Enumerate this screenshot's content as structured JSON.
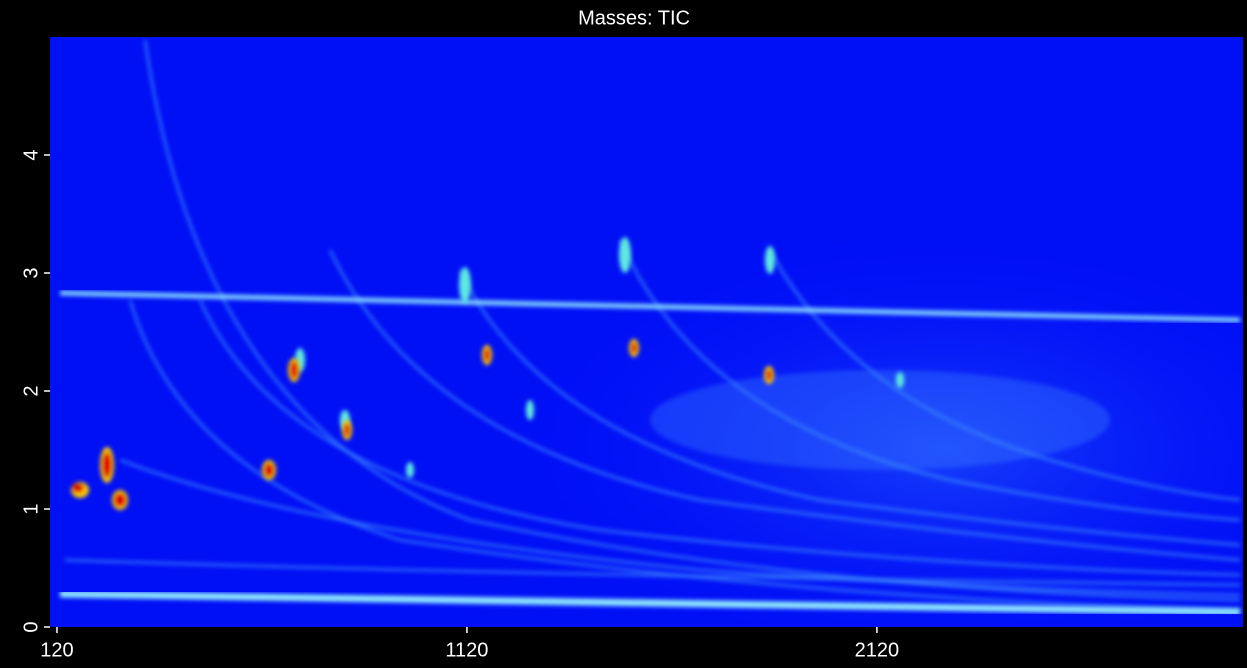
{
  "chart_data": {
    "type": "heatmap",
    "title": "Masses:  TIC",
    "xlim": [
      103,
      3013
    ],
    "xticks": [
      120,
      1120,
      2120
    ],
    "ylim": [
      0,
      5
    ],
    "yticks": [
      0,
      1,
      2,
      3,
      4
    ]
  }
}
